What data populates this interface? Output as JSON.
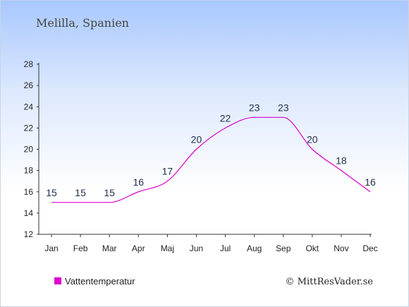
{
  "chart_data": {
    "type": "line",
    "title": "Melilla, Spanien",
    "categories": [
      "Jan",
      "Feb",
      "Mar",
      "Apr",
      "Maj",
      "Jun",
      "Jul",
      "Aug",
      "Sep",
      "Okt",
      "Nov",
      "Dec"
    ],
    "series": [
      {
        "name": "Vattentemperatur",
        "values": [
          15,
          15,
          15,
          16,
          17,
          20,
          22,
          23,
          23,
          20,
          18,
          16
        ],
        "color": "#dd00cc"
      }
    ],
    "ylim": [
      12,
      28
    ],
    "yticks": [
      12,
      14,
      16,
      18,
      20,
      22,
      24,
      26,
      28
    ],
    "grid": false,
    "legend": "bottom-left"
  },
  "credit": "© MittResVader.se"
}
